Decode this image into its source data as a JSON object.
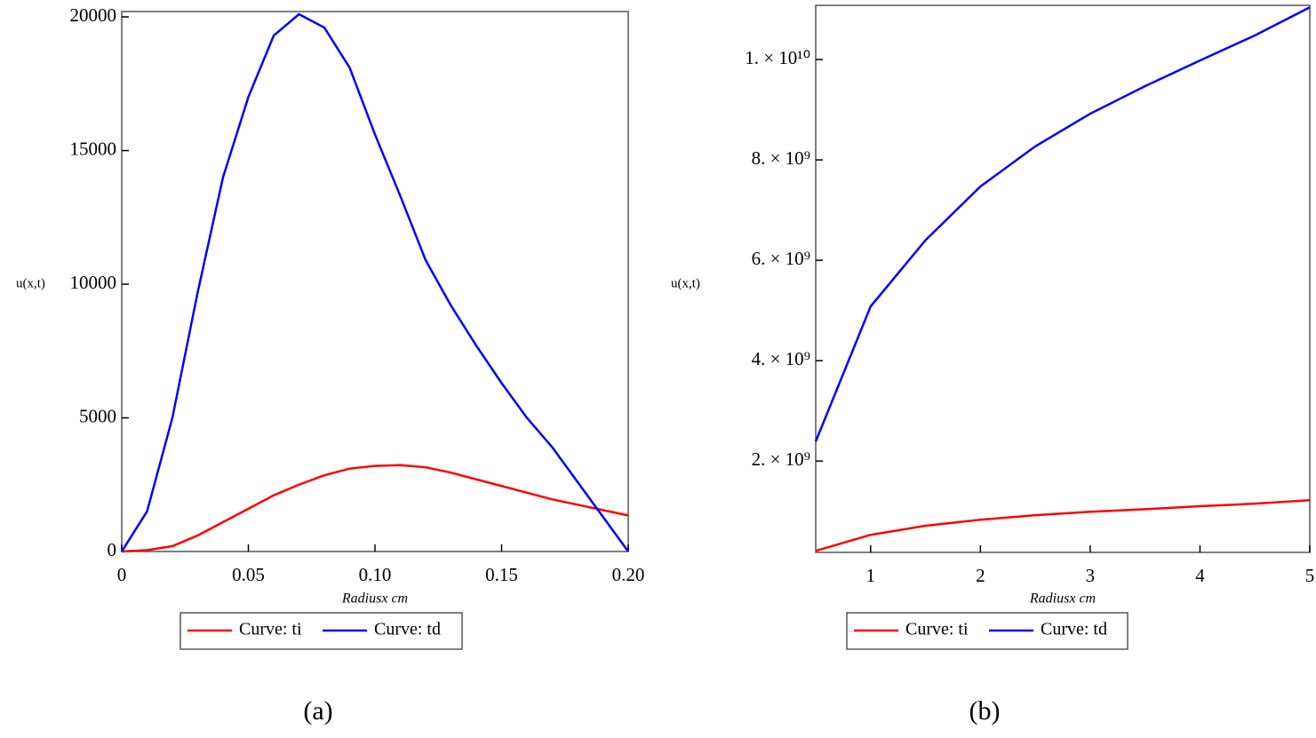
{
  "chart_data": [
    {
      "type": "line",
      "label": "(a)",
      "x_label": "Radiusx cm",
      "y_label": "u(x,t)",
      "x": [
        0,
        0.01,
        0.02,
        0.03,
        0.04,
        0.05,
        0.06,
        0.07,
        0.08,
        0.09,
        0.1,
        0.11,
        0.12,
        0.13,
        0.14,
        0.15,
        0.16,
        0.17,
        0.18,
        0.19,
        0.2
      ],
      "series": [
        {
          "name": "Curve: ti",
          "color": "#ff0000",
          "values": [
            0,
            50,
            200,
            600,
            1100,
            1600,
            2100,
            2500,
            2850,
            3100,
            3200,
            3230,
            3150,
            2950,
            2700,
            2450,
            2200,
            1950,
            1750,
            1550,
            1350
          ]
        },
        {
          "name": "Curve: td",
          "color": "#0000ff",
          "values": [
            0,
            1500,
            5000,
            9700,
            14000,
            17000,
            19300,
            20100,
            19600,
            18100,
            15600,
            13300,
            10900,
            9200,
            7700,
            6300,
            5000,
            3900,
            2600,
            1300,
            0
          ]
        }
      ],
      "xlim": [
        0,
        0.2
      ],
      "ylim": [
        0,
        20200
      ],
      "xticks": [
        0,
        0.05,
        {
          "value": 0.1,
          "label": "0.10"
        },
        0.15,
        {
          "value": 0.2,
          "label": "0.20"
        }
      ],
      "yticks": [
        0,
        5000,
        10000,
        15000,
        20000
      ]
    },
    {
      "type": "line",
      "label": "(b)",
      "x_label": "Radiusx cm",
      "y_label": "u(x,t)",
      "x": [
        0.5,
        1,
        1.5,
        2,
        2.5,
        3,
        3.5,
        4,
        4.5,
        5
      ],
      "series": [
        {
          "name": "Curve: ti",
          "color": "#ff0000",
          "values": [
            210000000,
            530000000,
            710000000,
            830000000,
            920000000,
            990000000,
            1040000000,
            1100000000,
            1150000000,
            1220000000
          ]
        },
        {
          "name": "Curve: td",
          "color": "#0000ff",
          "values": [
            2390000000,
            5080000000,
            6400000000,
            7470000000,
            8270000000,
            8920000000,
            9470000000,
            9980000000,
            10480000000,
            11040000000
          ]
        }
      ],
      "xlim": [
        0.5,
        5
      ],
      "ylim": [
        180000000,
        11080000000
      ],
      "xticks": [
        1,
        2,
        3,
        4,
        5
      ],
      "yticks": [
        {
          "value": 2000000000,
          "label": "2. × 10⁹"
        },
        {
          "value": 4000000000,
          "label": "4. × 10⁹"
        },
        {
          "value": 6000000000,
          "label": "6. × 10⁹"
        },
        {
          "value": 8000000000,
          "label": "8. × 10⁹"
        },
        {
          "value": 10000000000,
          "label": "1. × 10¹⁰"
        }
      ]
    }
  ]
}
